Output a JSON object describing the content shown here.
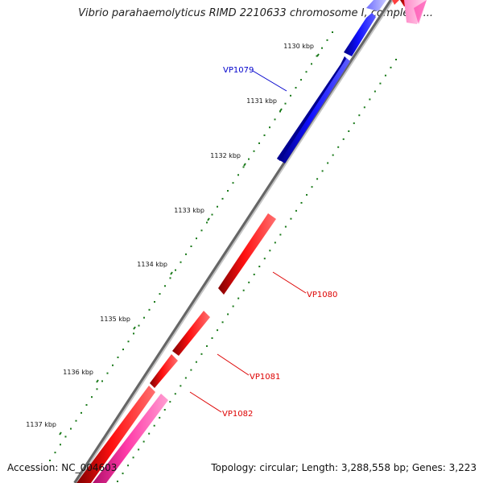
{
  "title": "Vibrio parahaemolyticus RIMD 2210633 chromosome I, complete ...",
  "footer": {
    "accession": "Accession: NC_004603",
    "summary": "Topology: circular; Length: 3,288,558 bp; Genes: 3,223"
  },
  "colors": {
    "forward_gene": "#0000ee",
    "reverse_gene": "#ee0000",
    "pink_gene": "#ee2f9a",
    "backbone": "#888888",
    "gc_dots": "#1a7a1a"
  },
  "position_labels": [
    "1130 kbp",
    "1131 kbp",
    "1132 kbp",
    "1133 kbp",
    "1134 kbp",
    "1135 kbp",
    "1136 kbp",
    "1137 kbp"
  ],
  "genes": [
    {
      "name": "VP1079",
      "color": "#0000ee"
    },
    {
      "name": "VP1080",
      "color": "#ee0000"
    },
    {
      "name": "VP1081",
      "color": "#ee0000"
    },
    {
      "name": "VP1082",
      "color": "#ee0000"
    }
  ]
}
